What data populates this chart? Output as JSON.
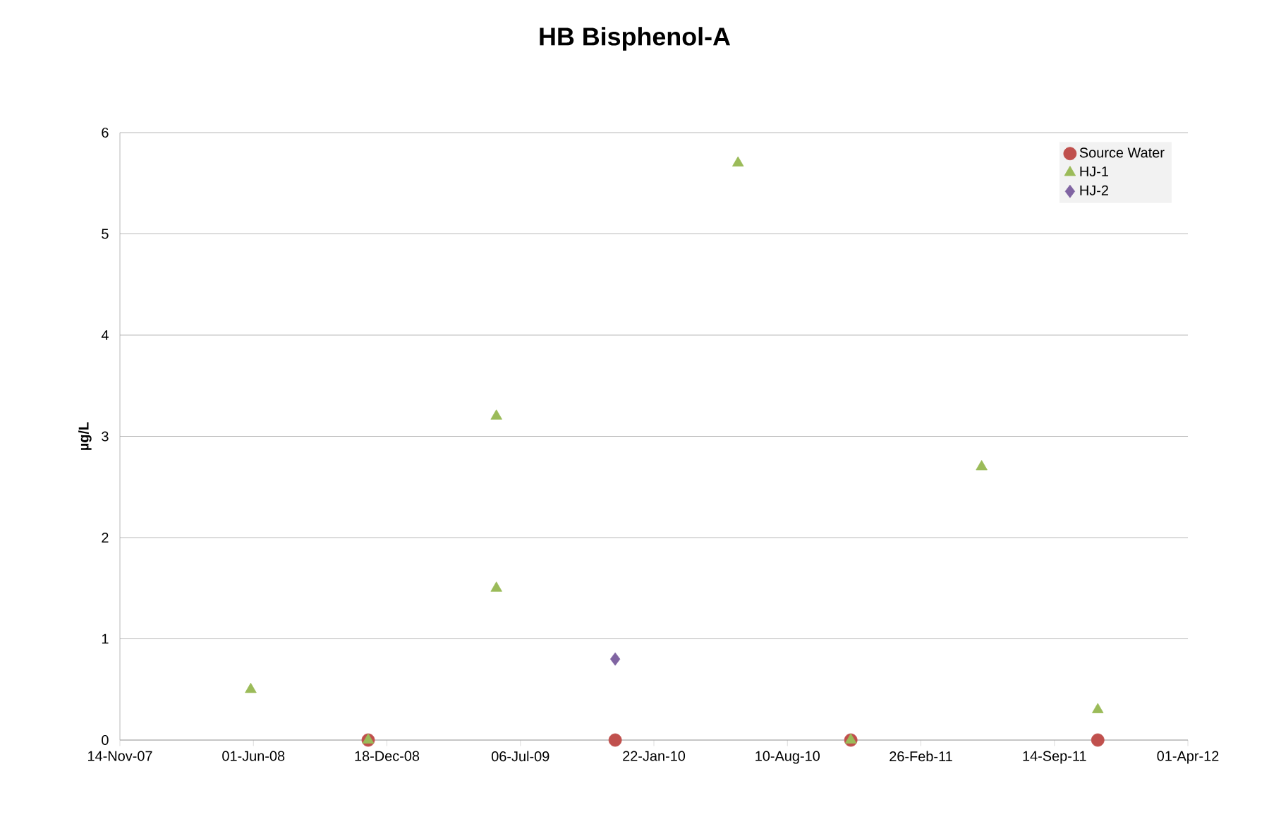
{
  "chart_data": {
    "type": "scatter",
    "title": "HB Bisphenol-A",
    "ylabel": "µg/L",
    "series": [
      {
        "name": "Source Water",
        "color": "#c0504d",
        "marker": "circle",
        "x": [
          "2008-11-20",
          "2009-11-25",
          "2010-11-13",
          "2011-11-18"
        ],
        "values": [
          0,
          0,
          0,
          0
        ]
      },
      {
        "name": "HJ-1",
        "color": "#9bbb59",
        "marker": "triangle",
        "x": [
          "2008-05-28",
          "2008-11-20",
          "2009-05-31",
          "2009-05-31",
          "2010-05-28",
          "2010-11-13",
          "2011-05-28",
          "2011-11-18"
        ],
        "values": [
          0.5,
          0,
          3.2,
          1.5,
          5.7,
          0,
          2.7,
          0.3
        ]
      },
      {
        "name": "HJ-2",
        "color": "#8064a2",
        "marker": "diamond",
        "x": [
          "2009-11-25"
        ],
        "values": [
          0.8
        ]
      }
    ],
    "xlim": [
      "2007-11-14",
      "2012-04-01"
    ],
    "xticks": [
      {
        "value": "2007-11-14",
        "label": "14-Nov-07"
      },
      {
        "value": "2008-06-01",
        "label": "01-Jun-08"
      },
      {
        "value": "2008-12-18",
        "label": "18-Dec-08"
      },
      {
        "value": "2009-07-06",
        "label": "06-Jul-09"
      },
      {
        "value": "2010-01-22",
        "label": "22-Jan-10"
      },
      {
        "value": "2010-08-10",
        "label": "10-Aug-10"
      },
      {
        "value": "2011-02-26",
        "label": "26-Feb-11"
      },
      {
        "value": "2011-09-14",
        "label": "14-Sep-11"
      },
      {
        "value": "2012-04-01",
        "label": "01-Apr-12"
      }
    ],
    "ylim": [
      0,
      6
    ],
    "yticks": [
      0,
      1,
      2,
      3,
      4,
      5,
      6
    ],
    "grid": "y",
    "legend": "top right"
  }
}
